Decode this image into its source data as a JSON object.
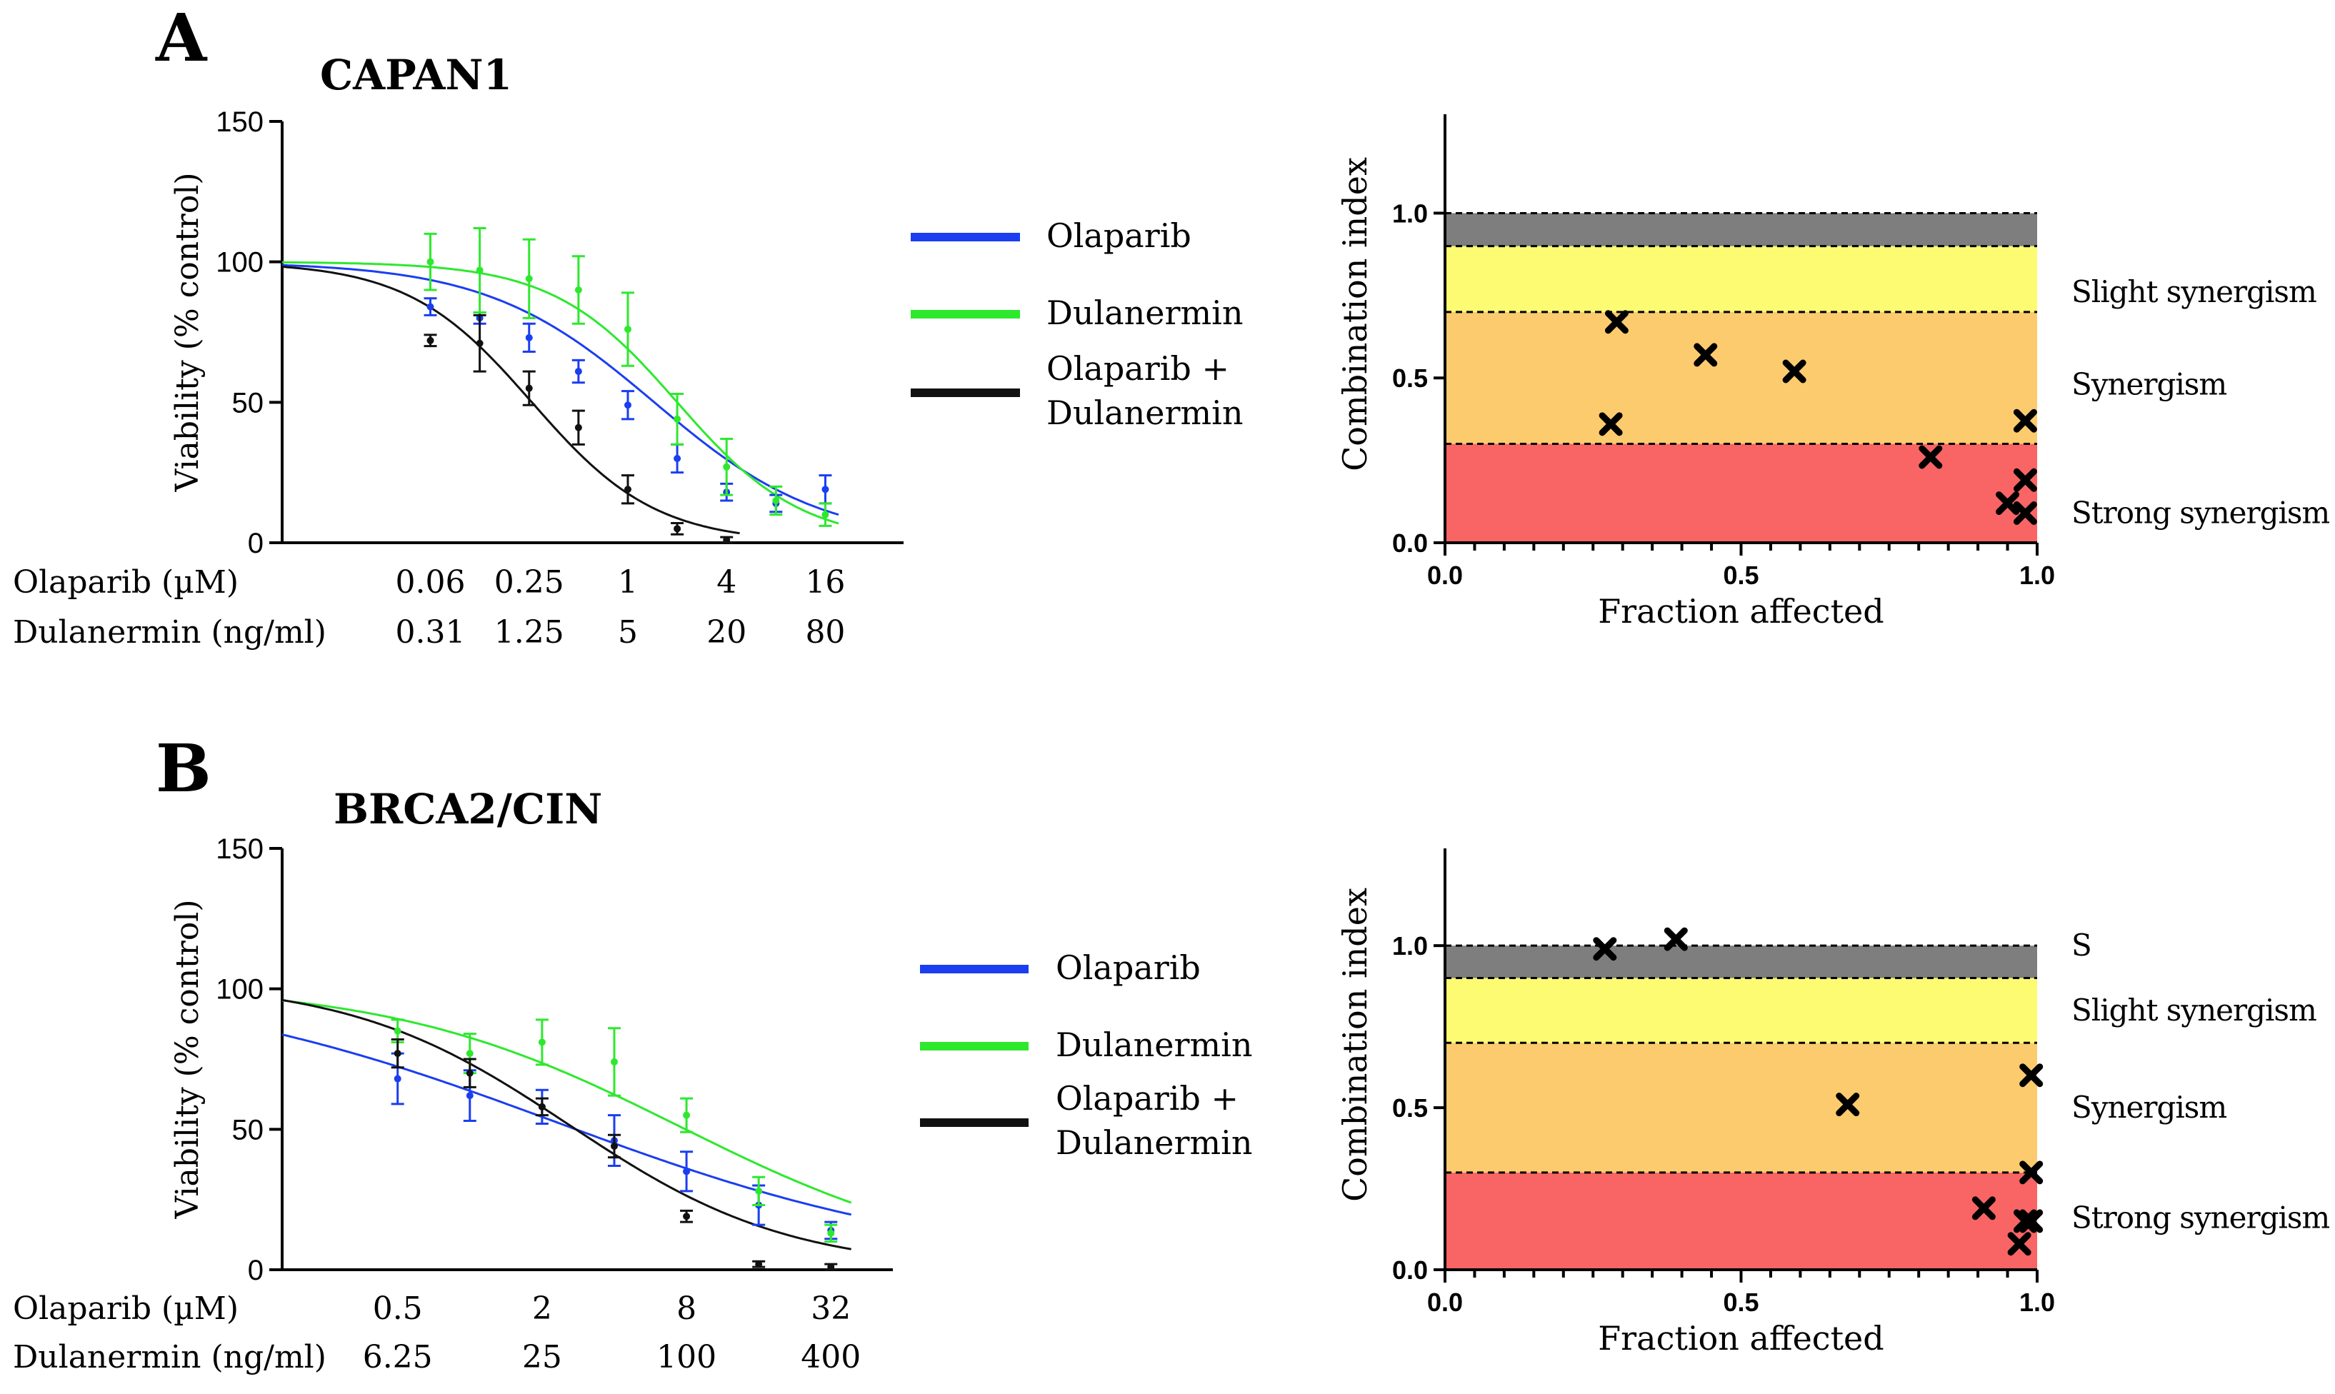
{
  "panels": [
    {
      "id": "A",
      "letter": "A",
      "title": "CAPAN1",
      "dose_response": {
        "type": "line",
        "ylabel": "Viability (% control)",
        "ylim": [
          0,
          150
        ],
        "yticks": [
          0,
          50,
          100,
          150
        ],
        "xscale": "log2",
        "xlim": [
          0.0078,
          48
        ],
        "row_labels": [
          "Olaparib (µM)",
          "Dulanermin (ng/ml)"
        ],
        "dose_labels": [
          {
            "ola": 0.0625,
            "olaparib": "0.06",
            "dulanermin": "0.31"
          },
          {
            "ola": 0.25,
            "olaparib": "0.25",
            "dulanermin": "1.25"
          },
          {
            "ola": 1,
            "olaparib": "1",
            "dulanermin": "5"
          },
          {
            "ola": 4,
            "olaparib": "4",
            "dulanermin": "20"
          },
          {
            "ola": 16,
            "olaparib": "16",
            "dulanermin": "80"
          }
        ],
        "legend": [
          "Olaparib",
          "Dulanermin",
          "Olaparib +\nDulanermin"
        ],
        "series": [
          {
            "name": "Olaparib",
            "color": "#1a3ef0",
            "fit": {
              "top": 100,
              "ec50": 1.45,
              "hill": 0.85
            },
            "x": [
              0.0625,
              0.125,
              0.25,
              0.5,
              1,
              2,
              4,
              8,
              16
            ],
            "y": [
              84,
              80,
              73,
              61,
              49,
              30,
              18,
              14,
              19
            ],
            "err": [
              3,
              2,
              5,
              4,
              5,
              5,
              3,
              3,
              5
            ]
          },
          {
            "name": "Dulanermin",
            "color": "#2ee82e",
            "fit": {
              "top": 100,
              "ec50": 2.0,
              "hill": 1.15
            },
            "x": [
              0.0625,
              0.125,
              0.25,
              0.5,
              1,
              2,
              4,
              8,
              16
            ],
            "y": [
              100,
              97,
              94,
              90,
              76,
              44,
              27,
              15,
              10
            ],
            "err": [
              10,
              15,
              14,
              12,
              13,
              9,
              10,
              5,
              4
            ]
          },
          {
            "name": "Olaparib + Dulanermin",
            "color": "#111111",
            "fit": {
              "top": 100,
              "ec50": 0.26,
              "hill": 1.15
            },
            "x": [
              0.0625,
              0.125,
              0.25,
              0.5,
              1,
              2,
              4
            ],
            "y": [
              72,
              71,
              55,
              41,
              19,
              5,
              1
            ],
            "err": [
              2,
              10,
              6,
              6,
              5,
              2,
              1
            ]
          }
        ]
      },
      "combination_index": {
        "type": "scatter",
        "xlabel": "Fraction affected",
        "ylabel": "Combination index",
        "xlim": [
          0,
          1
        ],
        "ylim": [
          0,
          1.3
        ],
        "xticks": [
          "0.0",
          "0.5",
          "1.0"
        ],
        "yticks": [
          "0.0",
          "0.5",
          "1.0"
        ],
        "bands": [
          {
            "from": 0,
            "to": 0.3,
            "color": "#f96464",
            "label": "Strong synergism"
          },
          {
            "from": 0.3,
            "to": 0.7,
            "color": "#fbcb6e",
            "label": "Synergism"
          },
          {
            "from": 0.7,
            "to": 0.9,
            "color": "#fdfb72",
            "label": "Slight synergism"
          },
          {
            "from": 0.9,
            "to": 1.0,
            "color": "#7e7e7e",
            "label": ""
          }
        ],
        "points": [
          {
            "fa": 0.29,
            "ci": 0.67
          },
          {
            "fa": 0.44,
            "ci": 0.57
          },
          {
            "fa": 0.59,
            "ci": 0.52
          },
          {
            "fa": 0.28,
            "ci": 0.36
          },
          {
            "fa": 0.98,
            "ci": 0.37
          },
          {
            "fa": 0.82,
            "ci": 0.26
          },
          {
            "fa": 0.98,
            "ci": 0.19
          },
          {
            "fa": 0.95,
            "ci": 0.12
          },
          {
            "fa": 0.98,
            "ci": 0.09
          }
        ]
      }
    },
    {
      "id": "B",
      "letter": "B",
      "title": "BRCA2/CIN",
      "dose_response": {
        "type": "line",
        "ylabel": "Viability (% control)",
        "ylim": [
          0,
          150
        ],
        "yticks": [
          0,
          50,
          100,
          150
        ],
        "xscale": "log2",
        "xlim": [
          0.165,
          58
        ],
        "row_labels": [
          "Olaparib (µM)",
          "Dulanermin (ng/ml)"
        ],
        "dose_labels": [
          {
            "ola": 0.5,
            "olaparib": "0.5",
            "dulanermin": "6.25"
          },
          {
            "ola": 2,
            "olaparib": "2",
            "dulanermin": "25"
          },
          {
            "ola": 8,
            "olaparib": "8",
            "dulanermin": "100"
          },
          {
            "ola": 32,
            "olaparib": "32",
            "dulanermin": "400"
          }
        ],
        "legend": [
          "Olaparib",
          "Dulanermin",
          "Olaparib +\nDulanermin"
        ],
        "series": [
          {
            "name": "Olaparib",
            "color": "#1a3ef0",
            "fit": {
              "top": 105,
              "ec50": 2.3,
              "hill": 0.52
            },
            "x": [
              0.5,
              1,
              2,
              4,
              8,
              16,
              32
            ],
            "y": [
              68,
              62,
              58,
              46,
              35,
              23,
              14
            ],
            "err": [
              9,
              9,
              6,
              9,
              7,
              7,
              3
            ]
          },
          {
            "name": "Dulanermin",
            "color": "#2ee82e",
            "fit": {
              "top": 102,
              "ec50": 7.5,
              "hill": 0.72
            },
            "x": [
              0.5,
              1,
              2,
              4,
              8,
              16,
              32
            ],
            "y": [
              85,
              77,
              81,
              74,
              55,
              28,
              13
            ],
            "err": [
              4,
              7,
              8,
              12,
              6,
              5,
              3
            ]
          },
          {
            "name": "Olaparib + Dulanermin",
            "color": "#111111",
            "fit": {
              "top": 103,
              "ec50": 2.6,
              "hill": 0.95
            },
            "x": [
              0.5,
              1,
              2,
              4,
              8,
              16,
              32
            ],
            "y": [
              77,
              70,
              58,
              44,
              19,
              2,
              1
            ],
            "err": [
              5,
              5,
              3,
              4,
              2,
              1,
              1
            ]
          }
        ]
      },
      "combination_index": {
        "type": "scatter",
        "xlabel": "Fraction affected",
        "ylabel": "Combination index",
        "xlim": [
          0,
          1
        ],
        "ylim": [
          0,
          1.3
        ],
        "xticks": [
          "0.0",
          "0.5",
          "1.0"
        ],
        "yticks": [
          "0.0",
          "0.5",
          "1.0"
        ],
        "bands": [
          {
            "from": 0,
            "to": 0.3,
            "color": "#f96464",
            "label": "Strong synergism"
          },
          {
            "from": 0.3,
            "to": 0.7,
            "color": "#fbcb6e",
            "label": "Synergism"
          },
          {
            "from": 0.7,
            "to": 0.9,
            "color": "#fdfb72",
            "label": "Slight synergism"
          },
          {
            "from": 0.9,
            "to": 1.0,
            "color": "#7e7e7e",
            "label": "S"
          }
        ],
        "points": [
          {
            "fa": 0.27,
            "ci": 0.99
          },
          {
            "fa": 0.39,
            "ci": 1.02
          },
          {
            "fa": 0.68,
            "ci": 0.51
          },
          {
            "fa": 0.99,
            "ci": 0.6
          },
          {
            "fa": 0.99,
            "ci": 0.3
          },
          {
            "fa": 0.91,
            "ci": 0.19
          },
          {
            "fa": 0.98,
            "ci": 0.15
          },
          {
            "fa": 0.99,
            "ci": 0.15
          },
          {
            "fa": 0.97,
            "ci": 0.08
          }
        ]
      }
    }
  ]
}
